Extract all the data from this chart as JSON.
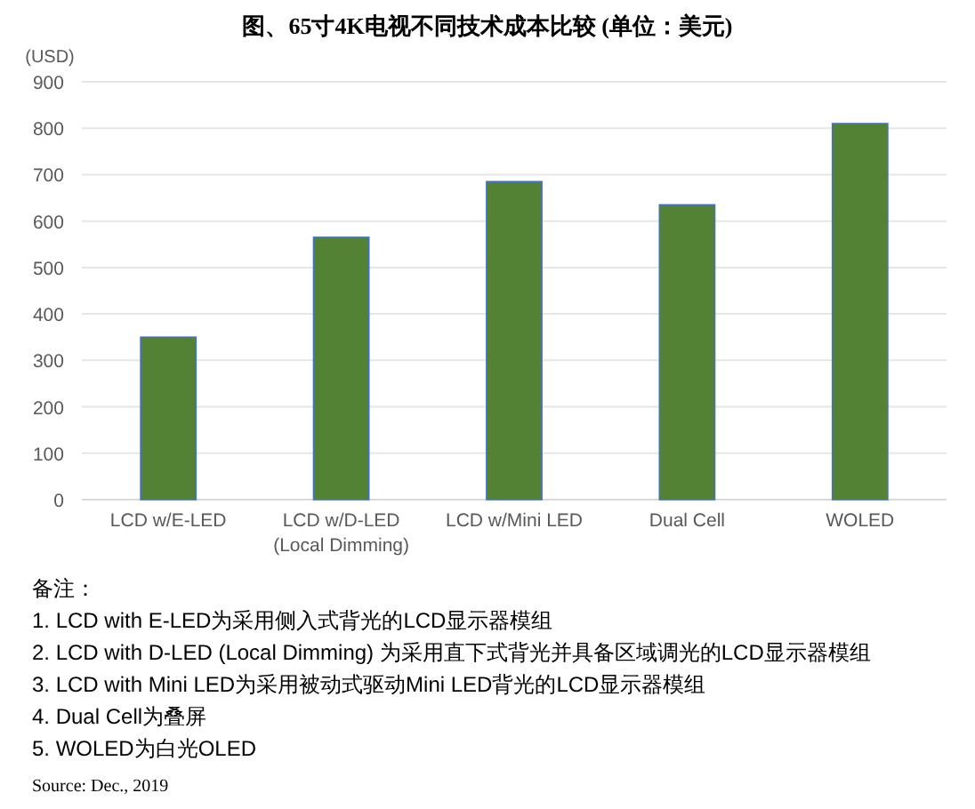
{
  "chart_data": {
    "type": "bar",
    "title": "图、65寸4K电视不同技术成本比较 (单位：美元)",
    "ylabel": "(USD)",
    "categories": [
      "LCD w/E-LED",
      "LCD w/D-LED (Local Dimming)",
      "LCD w/Mini LED",
      "Dual Cell",
      "WOLED"
    ],
    "series": [
      {
        "color": "#548235",
        "values": [
          350,
          565,
          685,
          635,
          810
        ]
      }
    ],
    "ylim": [
      0,
      900
    ],
    "yticks": [
      0,
      100,
      200,
      300,
      400,
      500,
      600,
      700,
      800,
      900
    ],
    "grid": "y",
    "annotations": [
      "备注：",
      "1. LCD with E-LED为采用侧入式背光的LCD显示器模组",
      "2. LCD with D-LED (Local Dimming) 为采用直下式背光并具备区域调光的LCD显示器模组",
      "3. LCD with Mini LED为采用被动式驱动Mini LED背光的LCD显示器模组",
      "4. Dual Cell为叠屏",
      "5. WOLED为白光OLED",
      "Source: Dec., 2019"
    ]
  }
}
